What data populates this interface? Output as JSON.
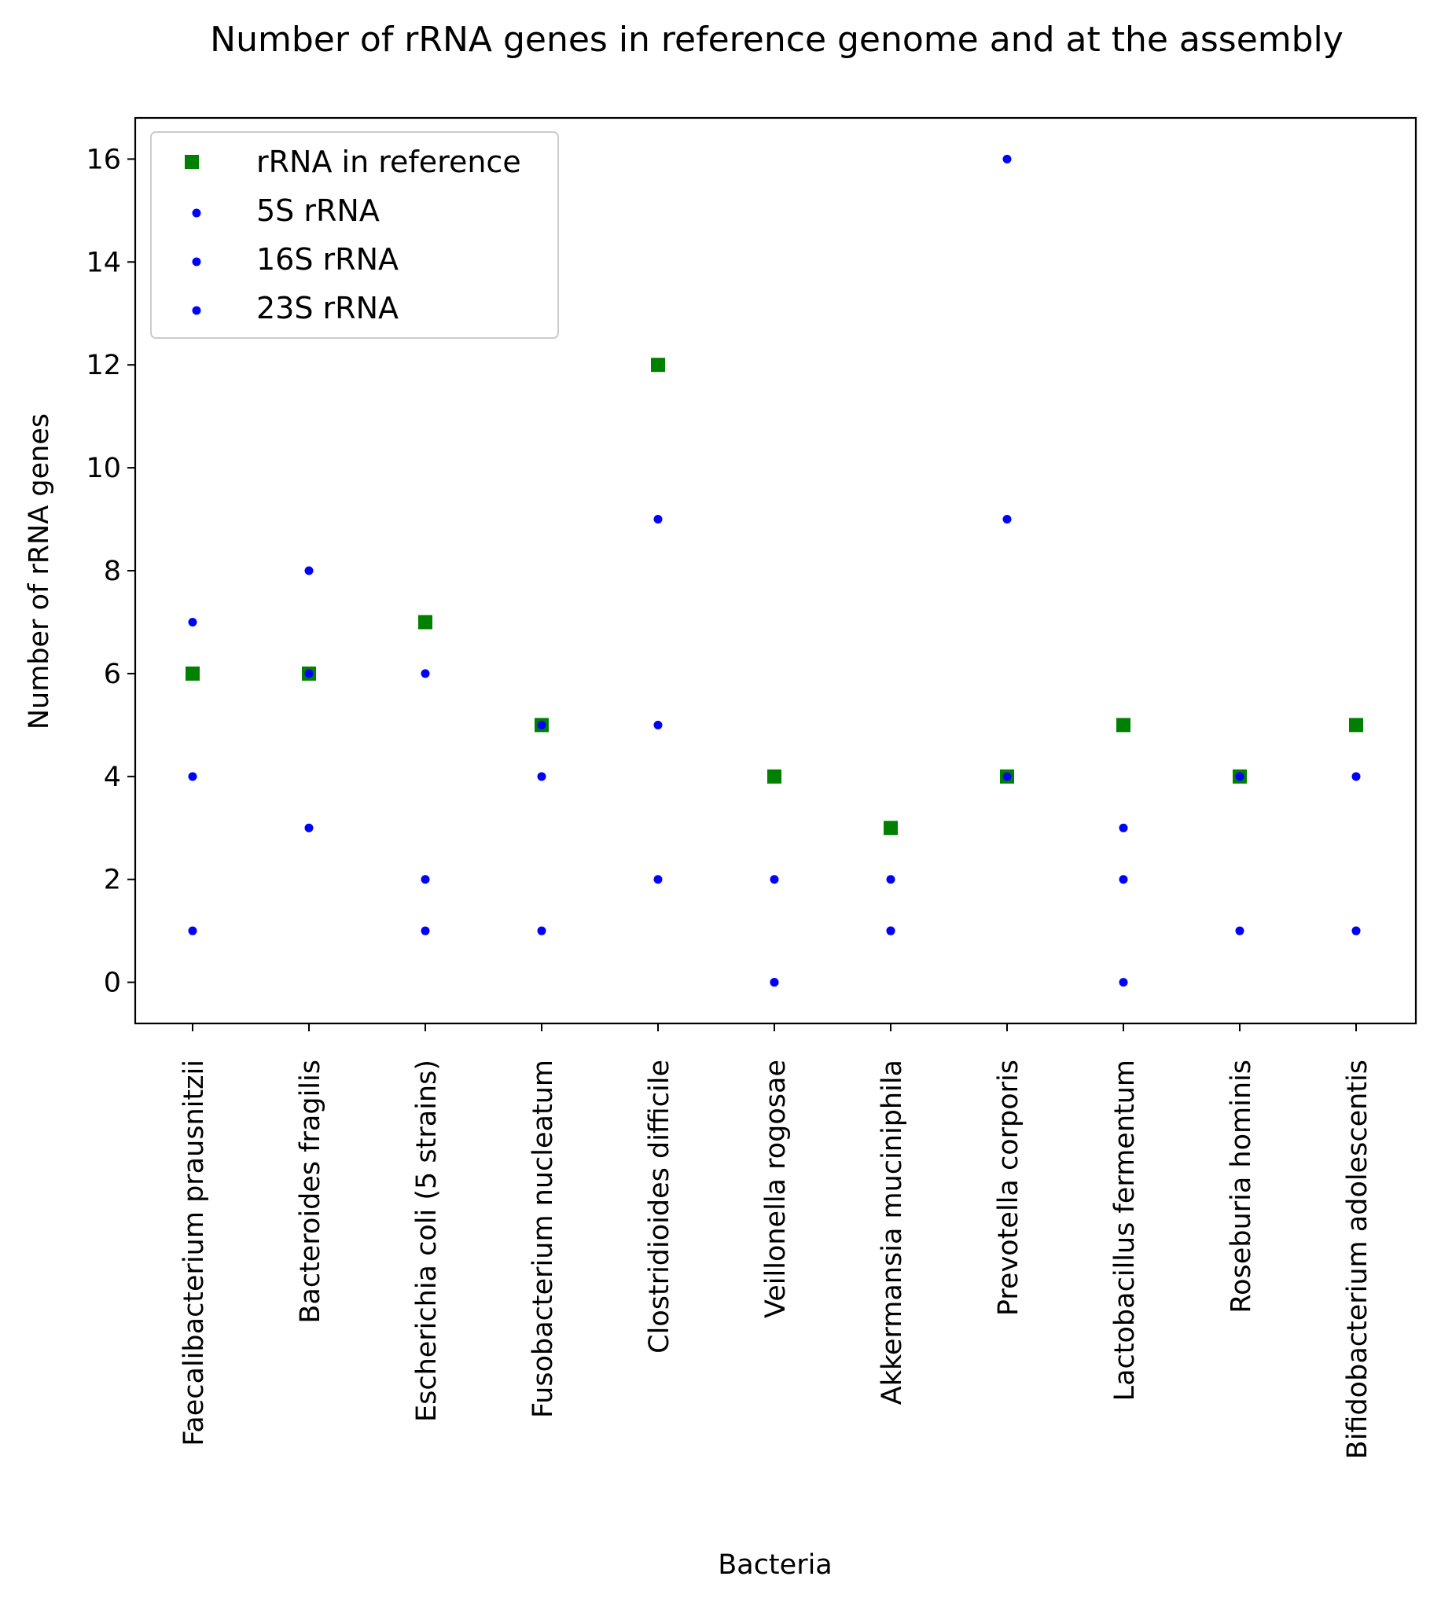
{
  "chart_data": {
    "type": "scatter",
    "title": "Number of rRNA genes in reference genome and at the assembly",
    "xlabel": "Bacteria",
    "ylabel": "Number of rRNA genes",
    "ylim": [
      -0.8,
      16.8
    ],
    "yticks": [
      0,
      2,
      4,
      6,
      8,
      10,
      12,
      14,
      16
    ],
    "grid": false,
    "legend_position": "top-left",
    "categories": [
      "Faecalibacterium prausnitzii",
      "Bacteroides fragilis",
      "Escherichia coli (5 strains)",
      "Fusobacterium nucleatum",
      "Clostridioides difficile",
      "Veillonella rogosae",
      "Akkermansia muciniphila",
      "Prevotella corporis",
      "Lactobacillus fermentum",
      "Roseburia hominis",
      "Bifidobacterium adolescentis"
    ],
    "series": [
      {
        "name": "rRNA in reference",
        "marker": "square",
        "color": "#008000",
        "values": [
          6,
          6,
          7,
          5,
          12,
          4,
          3,
          4,
          5,
          4,
          5
        ]
      },
      {
        "name": "5S rRNA",
        "marker": "dot",
        "color": "#0000ff",
        "values": [
          4,
          8,
          6,
          5,
          9,
          2,
          2,
          16,
          3,
          4,
          4
        ]
      },
      {
        "name": "16S rRNA",
        "marker": "dot",
        "color": "#0000ff",
        "values": [
          1,
          3,
          2,
          4,
          2,
          0,
          1,
          4,
          0,
          1,
          1
        ]
      },
      {
        "name": "23S rRNA",
        "marker": "dot",
        "color": "#0000ff",
        "values": [
          7,
          6,
          1,
          1,
          5,
          0,
          1,
          9,
          2,
          4,
          1
        ]
      }
    ]
  }
}
